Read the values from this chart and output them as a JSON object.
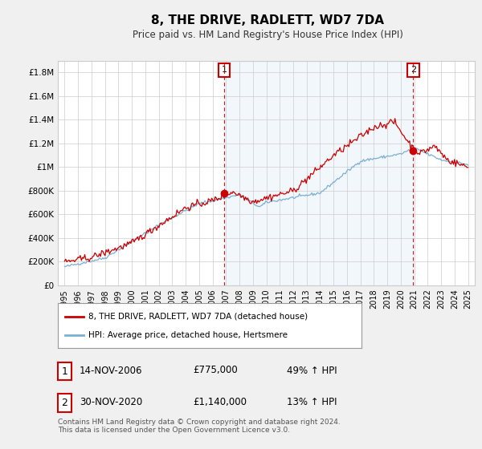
{
  "title": "8, THE DRIVE, RADLETT, WD7 7DA",
  "subtitle": "Price paid vs. HM Land Registry's House Price Index (HPI)",
  "xlim": [
    1994.5,
    2025.5
  ],
  "ylim": [
    0,
    1900000
  ],
  "yticks": [
    0,
    200000,
    400000,
    600000,
    800000,
    1000000,
    1200000,
    1400000,
    1600000,
    1800000
  ],
  "ytick_labels": [
    "£0",
    "£200K",
    "£400K",
    "£600K",
    "£800K",
    "£1M",
    "£1.2M",
    "£1.4M",
    "£1.6M",
    "£1.8M"
  ],
  "xticks": [
    1995,
    1996,
    1997,
    1998,
    1999,
    2000,
    2001,
    2002,
    2003,
    2004,
    2005,
    2006,
    2007,
    2008,
    2009,
    2010,
    2011,
    2012,
    2013,
    2014,
    2015,
    2016,
    2017,
    2018,
    2019,
    2020,
    2021,
    2022,
    2023,
    2024,
    2025
  ],
  "sale1_x": 2006.87,
  "sale1_y": 775000,
  "sale2_x": 2020.92,
  "sale2_y": 1140000,
  "vline1_x": 2006.87,
  "vline2_x": 2020.92,
  "red_color": "#cc0000",
  "blue_color": "#7ab0d4",
  "shade_color": "#ddeeff",
  "legend_label_red": "8, THE DRIVE, RADLETT, WD7 7DA (detached house)",
  "legend_label_blue": "HPI: Average price, detached house, Hertsmere",
  "table_row1": [
    "1",
    "14-NOV-2006",
    "£775,000",
    "49% ↑ HPI"
  ],
  "table_row2": [
    "2",
    "30-NOV-2020",
    "£1,140,000",
    "13% ↑ HPI"
  ],
  "footer": "Contains HM Land Registry data © Crown copyright and database right 2024.\nThis data is licensed under the Open Government Licence v3.0.",
  "bg_color": "#f0f0f0",
  "plot_bg_color": "#ffffff"
}
